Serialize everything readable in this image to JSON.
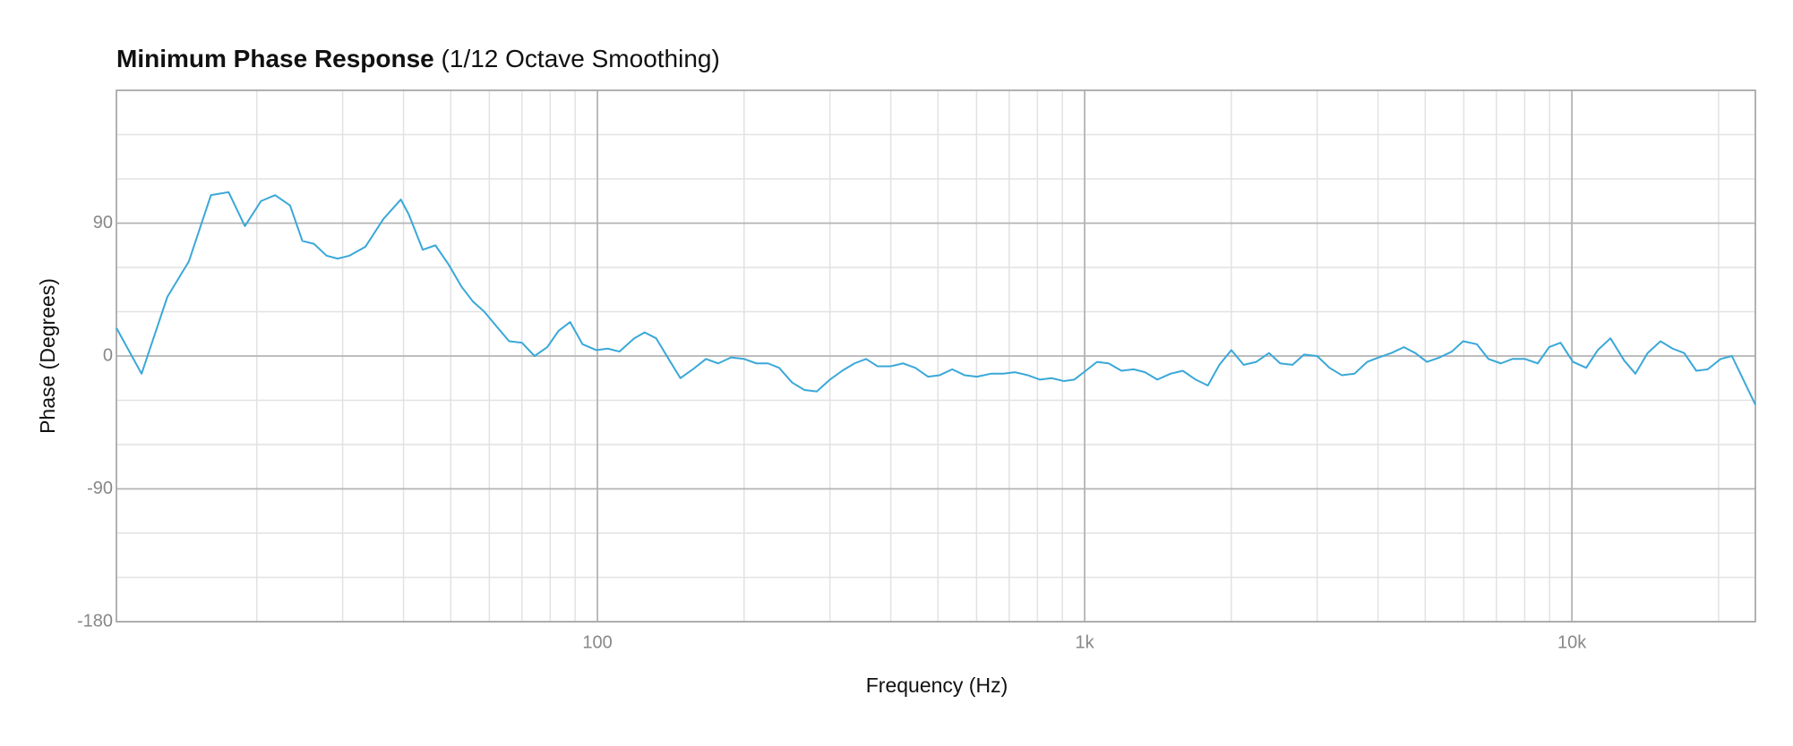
{
  "chart_data": {
    "type": "line",
    "title": "Minimum Phase Response",
    "subtitle": "(1/12 Octave Smoothing)",
    "x_label": "Frequency (Hz)",
    "y_label": "Phase (Degrees)",
    "log_x": true,
    "grid": true,
    "xlim": [
      10.3,
      23800
    ],
    "ylim": [
      -180,
      180
    ],
    "xticks": [
      100,
      {
        "value": 1000,
        "label": "1k"
      },
      {
        "value": 10000,
        "label": "10k"
      }
    ],
    "xticks_minor": [
      20,
      30,
      40,
      50,
      60,
      70,
      80,
      90,
      200,
      300,
      400,
      500,
      600,
      700,
      800,
      900,
      2000,
      3000,
      4000,
      5000,
      6000,
      7000,
      8000,
      9000,
      20000
    ],
    "yticks": [
      -180,
      -90,
      0,
      90
    ],
    "yticks_minor": [
      -150,
      -120,
      -60,
      -30,
      30,
      60,
      120,
      150,
      180
    ],
    "x": [
      10.3,
      11.6,
      13.1,
      14.5,
      16.1,
      17.5,
      18.9,
      20.4,
      21.8,
      23.4,
      24.8,
      26.2,
      27.8,
      29.3,
      31.0,
      33.4,
      36.4,
      39.5,
      41.0,
      43.8,
      46.5,
      49.5,
      52.6,
      55.5,
      58.6,
      62.1,
      65.9,
      70.0,
      74.3,
      78.9,
      83.2,
      87.9,
      93.2,
      99.5,
      105,
      111,
      119,
      125,
      132,
      140,
      148,
      157,
      167,
      177,
      188,
      200,
      212,
      224,
      236,
      251,
      266,
      282,
      300,
      318,
      337,
      356,
      376,
      399,
      424,
      449,
      477,
      504,
      535,
      567,
      601,
      642,
      681,
      719,
      764,
      810,
      855,
      907,
      952,
      1005,
      1060,
      1120,
      1190,
      1260,
      1330,
      1410,
      1500,
      1590,
      1690,
      1790,
      1890,
      2000,
      2120,
      2250,
      2390,
      2520,
      2670,
      2820,
      3000,
      3180,
      3370,
      3580,
      3800,
      4010,
      4260,
      4520,
      4770,
      5040,
      5350,
      5670,
      5980,
      6380,
      6740,
      7150,
      7550,
      8010,
      8510,
      8980,
      9480,
      10050,
      10700,
      11300,
      12000,
      12800,
      13500,
      14300,
      15200,
      16100,
      17000,
      18000,
      19000,
      20200,
      21300,
      23800
    ],
    "series": [
      {
        "name": "Phase",
        "color": "#3aa8d8",
        "values": [
          19,
          -12,
          40,
          64,
          109,
          111,
          88,
          105,
          109,
          102,
          78,
          76,
          68,
          66,
          68,
          74,
          93,
          106,
          96,
          72,
          75,
          62,
          47,
          37,
          30,
          20,
          10,
          9,
          0,
          6,
          17,
          23,
          8,
          4,
          5,
          3,
          12,
          16,
          12,
          -2,
          -15,
          -9,
          -2,
          -5,
          -1,
          -2,
          -5,
          -5,
          -8,
          -18,
          -23,
          -24,
          -16,
          -10,
          -5,
          -2,
          -7,
          -7,
          -5,
          -8,
          -14,
          -13,
          -9,
          -13,
          -14,
          -12,
          -12,
          -11,
          -13,
          -16,
          -15,
          -17,
          -16,
          -10,
          -4,
          -5,
          -10,
          -9,
          -11,
          -16,
          -12,
          -10,
          -16,
          -20,
          -6,
          4,
          -6,
          -4,
          2,
          -5,
          -6,
          1,
          0,
          -8,
          -13,
          -12,
          -4,
          -1,
          2,
          6,
          2,
          -4,
          -1,
          3,
          10,
          8,
          -2,
          -5,
          -2,
          -2,
          -5,
          6,
          9,
          -4,
          -8,
          4,
          12,
          -3,
          -12,
          2,
          10,
          5,
          2,
          -10,
          -9,
          -2,
          0,
          -33
        ]
      }
    ]
  }
}
